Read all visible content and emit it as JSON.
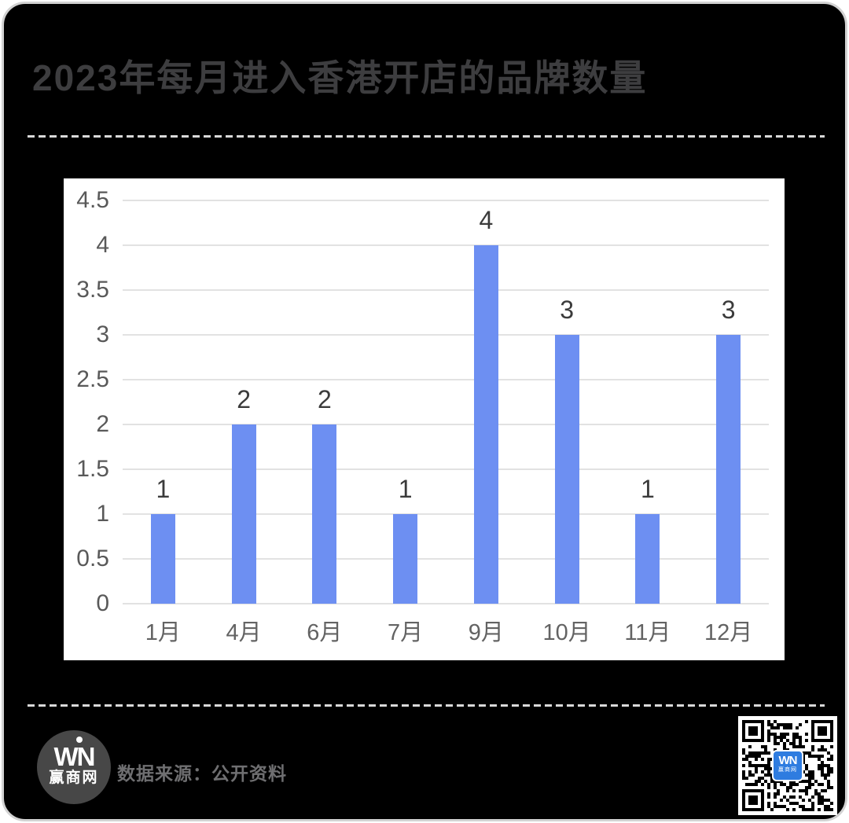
{
  "card": {
    "title": "2023年每月进入香港开店的品牌数量"
  },
  "chart_data": {
    "type": "bar",
    "title": "2023年每月进入香港开店的品牌数量",
    "categories": [
      "1月",
      "4月",
      "6月",
      "7月",
      "9月",
      "10月",
      "11月",
      "12月"
    ],
    "values": [
      1,
      2,
      2,
      1,
      4,
      3,
      1,
      3
    ],
    "data_labels": [
      "1",
      "2",
      "2",
      "1",
      "4",
      "3",
      "1",
      "3"
    ],
    "xlabel": "",
    "ylabel": "",
    "ylim": [
      0,
      4.5
    ],
    "yticks": [
      0,
      0.5,
      1,
      1.5,
      2,
      2.5,
      3,
      3.5,
      4,
      4.5
    ],
    "ytick_labels": [
      "0",
      "0.5",
      "1",
      "1.5",
      "2",
      "2.5",
      "3",
      "3.5",
      "4",
      "4.5"
    ],
    "grid": true,
    "legend_position": "none",
    "bar_color": "#6D8FF2",
    "plot_background": "#ffffff"
  },
  "footer": {
    "source_text": "数据来源：公开资料",
    "logo_initials": "WN",
    "logo_name": "赢商网",
    "qr_center_initials": "WN",
    "qr_center_name": "赢商网"
  },
  "colors": {
    "card_background": "#000000",
    "title_text": "#3d3d3f",
    "bar": "#6D8FF2",
    "gridline": "#e2e2e2",
    "axis_text": "#595959",
    "qr_center": "#2E7CE0"
  }
}
